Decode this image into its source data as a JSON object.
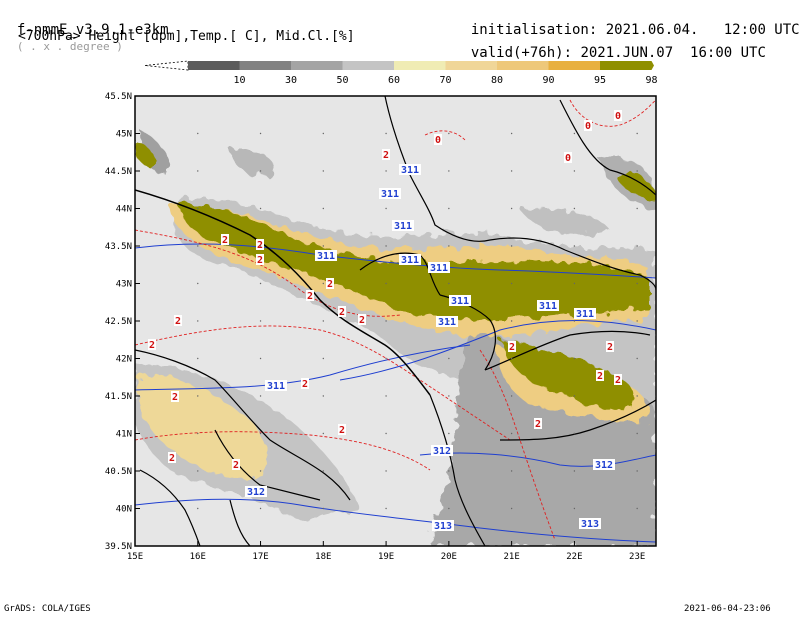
{
  "header": {
    "model": "f-nmmE_v3.9.1-e3km",
    "grid_note": "( . x . degree )",
    "fields": "<700hPa> Height [dpm],Temp.[ C], Mid.Cl.[%]",
    "init_label": "initialisation:",
    "init_value": "2021.06.04.   12:00 UTC",
    "valid_label": "valid(+76h):",
    "valid_value": "2021.JUN.07  16:00 UTC"
  },
  "colorbar": {
    "ticks": [
      "10",
      "30",
      "50",
      "60",
      "70",
      "80",
      "90",
      "95",
      "98"
    ],
    "colors": [
      "#5c5c5c",
      "#828282",
      "#a4a4a4",
      "#c4c4c4",
      "#f0ecb4",
      "#f0d698",
      "#eec87a",
      "#e8b040",
      "#8f8f00"
    ]
  },
  "map": {
    "lon_labels": [
      "15E",
      "16E",
      "17E",
      "18E",
      "19E",
      "20E",
      "21E",
      "22E",
      "23E"
    ],
    "lat_labels": [
      "45.5N",
      "45N",
      "44.5N",
      "44N",
      "43.5N",
      "43N",
      "42.5N",
      "42N",
      "41.5N",
      "41N",
      "40.5N",
      "40N",
      "39.5N"
    ],
    "height_labels": [
      "311",
      "311",
      "311",
      "311",
      "311",
      "311",
      "311",
      "311",
      "311",
      "311",
      "311",
      "312",
      "312",
      "312",
      "313",
      "313"
    ],
    "temp_labels": [
      "2",
      "2",
      "2",
      "2",
      "2",
      "2",
      "2",
      "2",
      "2",
      "2",
      "2",
      "2",
      "2",
      "2",
      "2",
      "2",
      "2",
      "2",
      "2",
      "2",
      "0",
      "0",
      "0",
      "0"
    ],
    "colors": {
      "land_bg": "#e6e6e6",
      "height_contour": "#1f3fd0",
      "temp_contour": "#e02020",
      "border": "#000000",
      "high_cloud": "#8f8f00"
    }
  },
  "footer": {
    "left": "GrADS: COLA/IGES",
    "right": "2021-06-04-23:06"
  }
}
